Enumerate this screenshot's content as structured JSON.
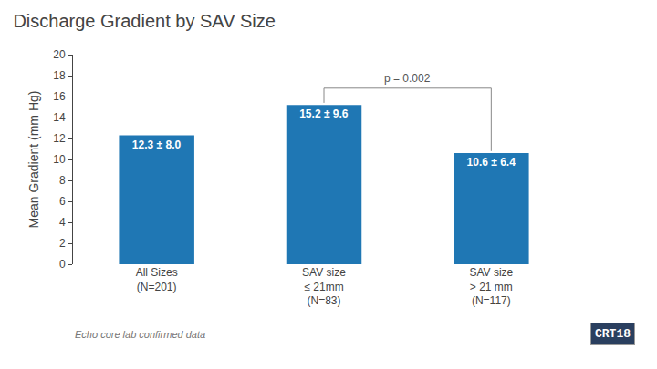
{
  "chart_data": {
    "type": "bar",
    "title": "Discharge Gradient by SAV Size",
    "ylabel": "Mean Gradient (mm Hg)",
    "categories": [
      "All Sizes\n(N=201)",
      "SAV size\n≤ 21mm\n(N=83)",
      "SAV size\n> 21 mm\n(N=117)"
    ],
    "values": [
      12.3,
      15.2,
      10.6
    ],
    "value_labels": [
      "12.3 ± 8.0",
      "15.2 ± 9.6",
      "10.6 ± 6.4"
    ],
    "data_labels": true,
    "ylim": [
      0,
      20
    ],
    "yticks": [
      0,
      2,
      4,
      6,
      8,
      10,
      12,
      14,
      16,
      18,
      20
    ],
    "grid": false,
    "annotations": [
      {
        "text": "p = 0.002",
        "between": [
          "SAV size\n≤ 21mm\n(N=83)",
          "SAV size\n> 21 mm\n(N=117)"
        ]
      },
      {
        "text": "Echo core lab confirmed data"
      },
      {
        "text": "CRT18"
      }
    ]
  }
}
